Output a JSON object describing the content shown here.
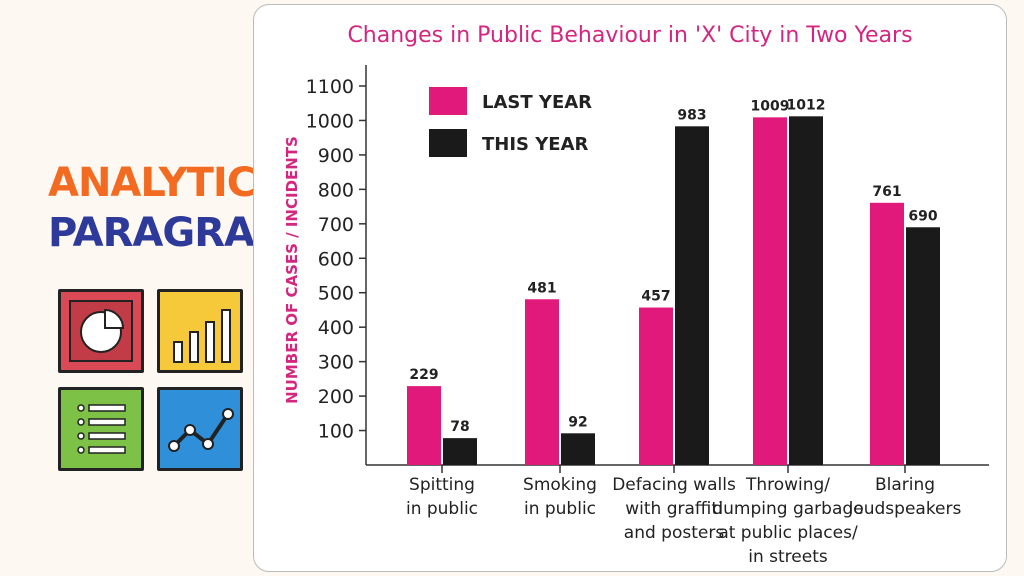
{
  "sidebar": {
    "title_line1": "ANALYTICAL",
    "title_line2": "PARAGRAPH",
    "icons": [
      "pie-chart-icon",
      "bar-chart-icon",
      "list-icon",
      "line-chart-icon"
    ],
    "icon_colors": {
      "pie": "#d94a56",
      "bar": "#f5c93a",
      "list": "#7dc246",
      "line": "#2f8fd8"
    }
  },
  "chart_data": {
    "type": "bar",
    "title": "Changes in Public Behaviour in 'X' City in Two Years",
    "xlabel": "",
    "ylabel": "NUMBER OF CASES / INCIDENTS",
    "ylim": [
      0,
      1150
    ],
    "yticks": [
      100,
      200,
      300,
      400,
      500,
      600,
      700,
      800,
      900,
      1000,
      1100
    ],
    "categories": [
      [
        "Spitting",
        "in public"
      ],
      [
        "Smoking",
        "in public"
      ],
      [
        "Defacing walls",
        "with graffiti",
        "and posters"
      ],
      [
        "Throwing/",
        "dumping garbage",
        "at public places/",
        "in streets"
      ],
      [
        "Blaring",
        "loudspeakers"
      ]
    ],
    "series": [
      {
        "name": "LAST YEAR",
        "color": "#e0197a",
        "values": [
          229,
          481,
          457,
          1009,
          761
        ]
      },
      {
        "name": "THIS YEAR",
        "color": "#1a1a1a",
        "values": [
          78,
          92,
          983,
          1012,
          690
        ]
      }
    ],
    "legend_position": "top-left",
    "grid": false
  }
}
